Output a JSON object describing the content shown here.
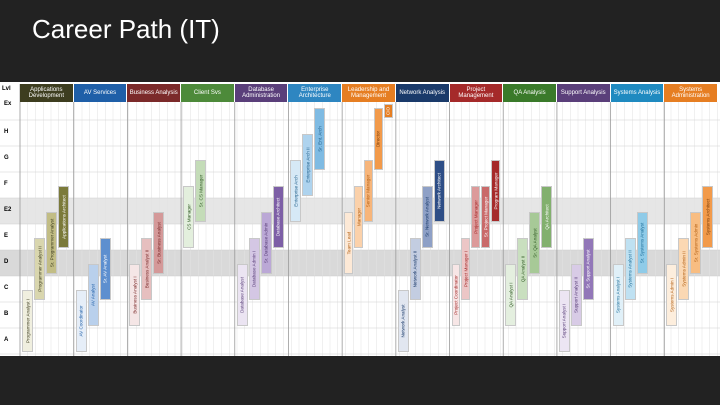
{
  "slide": {
    "title": "Career Path (IT)"
  },
  "chart": {
    "level_header": "Lvl",
    "levels": [
      "Ex",
      "H",
      "G",
      "F",
      "E2",
      "E",
      "D",
      "C",
      "B",
      "A"
    ],
    "columns": [
      {
        "label": "Applications Development",
        "color": "#3d3d1f"
      },
      {
        "label": "AV Services",
        "color": "#1f5fa8"
      },
      {
        "label": "Business Analysis",
        "color": "#7b2a2a"
      },
      {
        "label": "Client Svs",
        "color": "#4d8a3a"
      },
      {
        "label": "Database Administration",
        "color": "#5a3f7a"
      },
      {
        "label": "Enterprise Architecture",
        "color": "#2e86c1"
      },
      {
        "label": "Leadership and Management",
        "color": "#e67e22"
      },
      {
        "label": "Network Analysis",
        "color": "#1a3a6a"
      },
      {
        "label": "Project Management",
        "color": "#a52a2a"
      },
      {
        "label": "QA Analysis",
        "color": "#3a7a2a"
      },
      {
        "label": "Support Analysis",
        "color": "#5a3f7a"
      },
      {
        "label": "Systems Analysis",
        "color": "#1f8ac0"
      },
      {
        "label": "Systems Administration",
        "color": "#e67e22"
      }
    ],
    "jobs": [
      {
        "col": 0,
        "level": "A",
        "label": "Programmer Analyst I",
        "fill": "#f0efdf",
        "text": "#3d3d1f"
      },
      {
        "col": 0,
        "level": "C",
        "label": "Programmer Analyst II",
        "fill": "#d9d6ae",
        "text": "#3d3d1f"
      },
      {
        "col": 0,
        "level": "D",
        "label": "Sr. Programmer Analyst",
        "fill": "#c2bd85",
        "text": "#3d3d1f"
      },
      {
        "col": 0,
        "level": "E",
        "label": "Applications Architect",
        "fill": "#7b7a3a",
        "text": "#ffffff"
      },
      {
        "col": 1,
        "level": "A",
        "label": "AV Coordinator",
        "fill": "#e6eef8",
        "text": "#1f5fa8"
      },
      {
        "col": 1,
        "level": "B",
        "label": "AV Analyst",
        "fill": "#b9d0ec",
        "text": "#1f5fa8"
      },
      {
        "col": 1,
        "level": "C",
        "label": "Sr. AV Analyst",
        "fill": "#5d8fcf",
        "text": "#ffffff"
      },
      {
        "col": 2,
        "level": "B",
        "label": "Business Analyst I",
        "fill": "#f5e6e6",
        "text": "#7b2a2a"
      },
      {
        "col": 2,
        "level": "C",
        "label": "Business Analyst II",
        "fill": "#e6bfbf",
        "text": "#7b2a2a"
      },
      {
        "col": 2,
        "level": "D",
        "label": "Sr. Business Analyst",
        "fill": "#d49999",
        "text": "#7b2a2a"
      },
      {
        "col": 3,
        "level": "E",
        "label": "CS Manager",
        "fill": "#e3efdd",
        "text": "#2f5a23"
      },
      {
        "col": 3,
        "level": "E2",
        "label": "Sr. CS Manager",
        "fill": "#c4dcb8",
        "text": "#2f5a23"
      },
      {
        "col": 4,
        "level": "B",
        "label": "Database Analyst",
        "fill": "#ebe4f2",
        "text": "#5a3f7a"
      },
      {
        "col": 4,
        "level": "C",
        "label": "Database Admin I",
        "fill": "#d4c7e4",
        "text": "#5a3f7a"
      },
      {
        "col": 4,
        "level": "D",
        "label": "Sr. Database Admin",
        "fill": "#bba8d6",
        "text": "#5a3f7a"
      },
      {
        "col": 4,
        "level": "E",
        "label": "Database Architect",
        "fill": "#7d5fa6",
        "text": "#ffffff"
      },
      {
        "col": 5,
        "level": "E2",
        "label": "Enterprise Arch",
        "fill": "#d6e9f6",
        "text": "#1f5f8a"
      },
      {
        "col": 5,
        "level": "F",
        "label": "Enterprise Arch II",
        "fill": "#aed3ee",
        "text": "#1f5f8a"
      },
      {
        "col": 5,
        "level": "G",
        "label": "Sr. Ent. Arch",
        "fill": "#7fbbe3",
        "text": "#1f5f8a"
      },
      {
        "col": 6,
        "level": "D",
        "label": "Team Lead",
        "fill": "#fde9d6",
        "text": "#b35f12"
      },
      {
        "col": 6,
        "level": "E",
        "label": "Manager",
        "fill": "#fbd1aa",
        "text": "#b35f12"
      },
      {
        "col": 6,
        "level": "E2",
        "label": "Senior Manager",
        "fill": "#f7b57a",
        "text": "#b35f12"
      },
      {
        "col": 6,
        "level": "G",
        "label": "Director",
        "fill": "#f29a4a",
        "text": "#7a3d08"
      },
      {
        "col": 6,
        "level": "Ex",
        "label": "CIO",
        "fill": "#e67e22",
        "text": "#ffffff"
      },
      {
        "col": 7,
        "level": "A",
        "label": "Network Analyst",
        "fill": "#e1e6f0",
        "text": "#1a3a6a"
      },
      {
        "col": 7,
        "level": "C",
        "label": "Network Analyst II",
        "fill": "#c3cde1",
        "text": "#1a3a6a"
      },
      {
        "col": 7,
        "level": "E",
        "label": "Sr. Network Analyst",
        "fill": "#8ea0c6",
        "text": "#1a3a6a"
      },
      {
        "col": 7,
        "level": "E2",
        "label": "Network Architect",
        "fill": "#2e4e86",
        "text": "#ffffff"
      },
      {
        "col": 8,
        "level": "B",
        "label": "Project Coordinator",
        "fill": "#f7e6e6",
        "text": "#a52a2a"
      },
      {
        "col": 8,
        "level": "C",
        "label": "Project Manager I",
        "fill": "#ecc6c6",
        "text": "#a52a2a"
      },
      {
        "col": 8,
        "level": "E",
        "label": "Project Manager",
        "fill": "#dc9a9a",
        "text": "#a52a2a"
      },
      {
        "col": 8,
        "level": "E",
        "label": "Sr. Project Manager",
        "fill": "#c96a6a",
        "text": "#ffffff"
      },
      {
        "col": 8,
        "level": "E2",
        "label": "Program Manager",
        "fill": "#a52a2a",
        "text": "#ffffff"
      },
      {
        "col": 9,
        "level": "B",
        "label": "QA Analyst I",
        "fill": "#e4efdf",
        "text": "#2f5a23"
      },
      {
        "col": 9,
        "level": "C",
        "label": "QA Analyst II",
        "fill": "#c9dfbf",
        "text": "#2f5a23"
      },
      {
        "col": 9,
        "level": "D",
        "label": "Sr. QA Analyst",
        "fill": "#a7c997",
        "text": "#2f5a23"
      },
      {
        "col": 9,
        "level": "E",
        "label": "QA Architect",
        "fill": "#82b06e",
        "text": "#ffffff"
      },
      {
        "col": 10,
        "level": "A",
        "label": "Support Analyst I",
        "fill": "#ece5f3",
        "text": "#5a3f7a"
      },
      {
        "col": 10,
        "level": "B",
        "label": "Support Analyst II",
        "fill": "#d8cbe6",
        "text": "#5a3f7a"
      },
      {
        "col": 10,
        "level": "C",
        "label": "Sr. Support Analyst",
        "fill": "#9277b8",
        "text": "#ffffff"
      },
      {
        "col": 11,
        "level": "B",
        "label": "Systems Analyst I",
        "fill": "#e0f0f8",
        "text": "#1f6f9a"
      },
      {
        "col": 11,
        "level": "C",
        "label": "Systems Analyst II",
        "fill": "#bfe1f2",
        "text": "#1f6f9a"
      },
      {
        "col": 11,
        "level": "D",
        "label": "Sr. Systems Analyst",
        "fill": "#8fcbe8",
        "text": "#1f6f9a"
      },
      {
        "col": 12,
        "level": "B",
        "label": "Systems Admin I",
        "fill": "#fdeedd",
        "text": "#b35f12"
      },
      {
        "col": 12,
        "level": "C",
        "label": "Systems Admin II",
        "fill": "#fbd8b3",
        "text": "#b35f12"
      },
      {
        "col": 12,
        "level": "D",
        "label": "Sr. Systems Admin",
        "fill": "#f8bd82",
        "text": "#b35f12"
      },
      {
        "col": 12,
        "level": "E",
        "label": "Systems Architect",
        "fill": "#f29a4a",
        "text": "#7a3d08"
      }
    ]
  }
}
